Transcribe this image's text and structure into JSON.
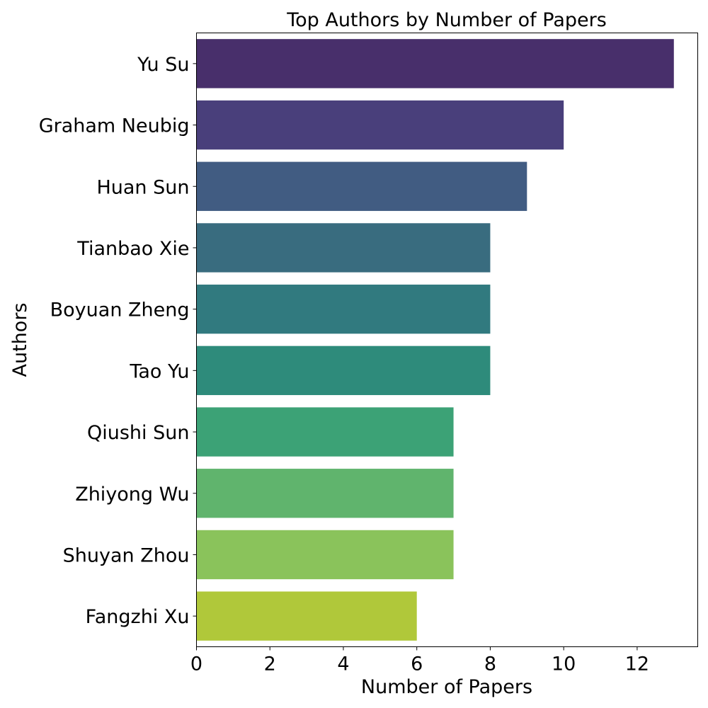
{
  "chart_data": {
    "type": "bar",
    "orientation": "horizontal",
    "title": "Top Authors by Number of Papers",
    "xlabel": "Number of Papers",
    "ylabel": "Authors",
    "categories": [
      "Yu Su",
      "Graham Neubig",
      "Huan Sun",
      "Tianbao Xie",
      "Boyuan Zheng",
      "Tao Yu",
      "Qiushi Sun",
      "Zhiyong Wu",
      "Shuyan Zhou",
      "Fangzhi Xu"
    ],
    "values": [
      13,
      10,
      9,
      8,
      8,
      8,
      7,
      7,
      7,
      6
    ],
    "colors": [
      "#482f6b",
      "#493f7b",
      "#415c82",
      "#396c7f",
      "#317a7f",
      "#2e8b7b",
      "#3ca276",
      "#60b46d",
      "#8ac35b",
      "#b0c83a"
    ],
    "xlim": [
      0,
      13.65
    ],
    "xticks": [
      0,
      2,
      4,
      6,
      8,
      10,
      12
    ],
    "grid": false
  }
}
